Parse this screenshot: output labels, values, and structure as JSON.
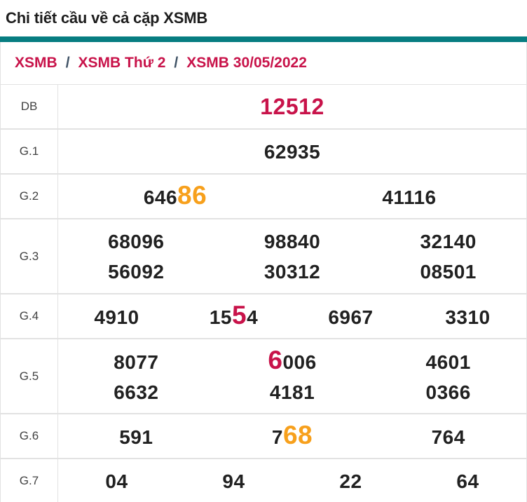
{
  "page_title": "Chi tiết cầu về cả cặp XSMB",
  "breadcrumb": {
    "separator": "/",
    "items": [
      "XSMB",
      "XSMB Thứ 2",
      "XSMB 30/05/2022"
    ]
  },
  "colors": {
    "accent_teal": "#077d81",
    "crimson": "#c8134a",
    "highlight_orange": "#f7a01c",
    "number_dark": "#212121",
    "row_border": "#e2e2e2"
  },
  "table": {
    "rows": [
      {
        "label": "DB",
        "variant": "db",
        "lines": [
          [
            [
              {
                "t": "12512",
                "k": "n"
              }
            ]
          ]
        ]
      },
      {
        "label": "G.1",
        "variant": "normal",
        "lines": [
          [
            [
              {
                "t": "62935",
                "k": "n"
              }
            ]
          ]
        ]
      },
      {
        "label": "G.2",
        "variant": "normal",
        "lines": [
          [
            [
              {
                "t": "646",
                "k": "n"
              },
              {
                "t": "86",
                "k": "o"
              }
            ],
            [
              {
                "t": "41116",
                "k": "n"
              }
            ]
          ]
        ]
      },
      {
        "label": "G.3",
        "variant": "normal",
        "lines": [
          [
            [
              {
                "t": "68096",
                "k": "n"
              }
            ],
            [
              {
                "t": "98840",
                "k": "n"
              }
            ],
            [
              {
                "t": "32140",
                "k": "n"
              }
            ]
          ],
          [
            [
              {
                "t": "56092",
                "k": "n"
              }
            ],
            [
              {
                "t": "30312",
                "k": "n"
              }
            ],
            [
              {
                "t": "08501",
                "k": "n"
              }
            ]
          ]
        ]
      },
      {
        "label": "G.4",
        "variant": "normal",
        "lines": [
          [
            [
              {
                "t": "4910",
                "k": "n"
              }
            ],
            [
              {
                "t": "15",
                "k": "n"
              },
              {
                "t": "5",
                "k": "r"
              },
              {
                "t": "4",
                "k": "n"
              }
            ],
            [
              {
                "t": "6967",
                "k": "n"
              }
            ],
            [
              {
                "t": "3310",
                "k": "n"
              }
            ]
          ]
        ]
      },
      {
        "label": "G.5",
        "variant": "normal",
        "lines": [
          [
            [
              {
                "t": "8077",
                "k": "n"
              }
            ],
            [
              {
                "t": "6",
                "k": "r"
              },
              {
                "t": "006",
                "k": "n"
              }
            ],
            [
              {
                "t": "4601",
                "k": "n"
              }
            ]
          ],
          [
            [
              {
                "t": "6632",
                "k": "n"
              }
            ],
            [
              {
                "t": "4181",
                "k": "n"
              }
            ],
            [
              {
                "t": "0366",
                "k": "n"
              }
            ]
          ]
        ]
      },
      {
        "label": "G.6",
        "variant": "normal",
        "lines": [
          [
            [
              {
                "t": "591",
                "k": "n"
              }
            ],
            [
              {
                "t": "7",
                "k": "n"
              },
              {
                "t": "68",
                "k": "o"
              }
            ],
            [
              {
                "t": "764",
                "k": "n"
              }
            ]
          ]
        ]
      },
      {
        "label": "G.7",
        "variant": "normal",
        "lines": [
          [
            [
              {
                "t": "04",
                "k": "n"
              }
            ],
            [
              {
                "t": "94",
                "k": "n"
              }
            ],
            [
              {
                "t": "22",
                "k": "n"
              }
            ],
            [
              {
                "t": "64",
                "k": "n"
              }
            ]
          ]
        ]
      }
    ]
  }
}
